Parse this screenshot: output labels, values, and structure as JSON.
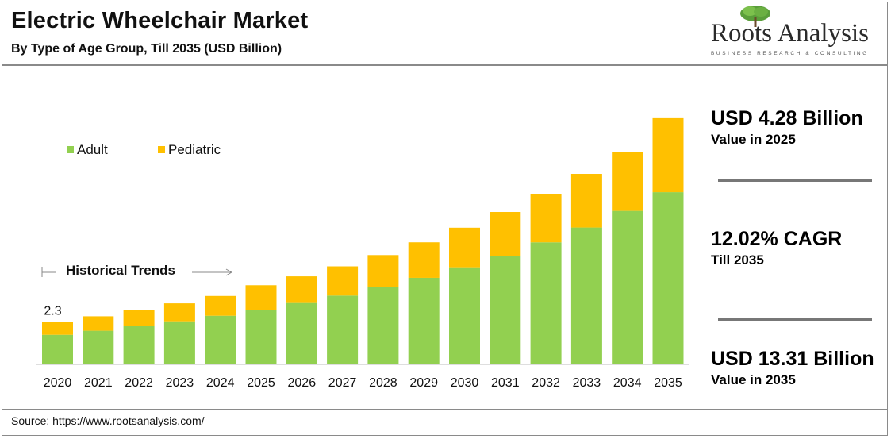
{
  "header": {
    "title": "Electric Wheelchair Market",
    "subtitle": "By Type of Age Group, Till 2035 (USD Billion)"
  },
  "logo": {
    "name": "Roots Analysis",
    "tagline": "BUSINESS RESEARCH & CONSULTING"
  },
  "kpis": [
    {
      "value": "USD 4.28 Billion",
      "label": "Value in 2025"
    },
    {
      "value": "12.02% CAGR",
      "label": "Till 2035"
    },
    {
      "value": "USD 13.31 Billion",
      "label": "Value in 2035"
    }
  ],
  "source": "Source: https://www.rootsanalysis.com/",
  "colors": {
    "adult": "#92d050",
    "pediatric": "#ffc000",
    "frame": "#8a8a8a"
  },
  "chart_data": {
    "type": "bar",
    "stacked": true,
    "categories": [
      "2020",
      "2021",
      "2022",
      "2023",
      "2024",
      "2025",
      "2026",
      "2027",
      "2028",
      "2029",
      "2030",
      "2031",
      "2032",
      "2033",
      "2034",
      "2035"
    ],
    "series": [
      {
        "name": "Adult",
        "color": "#92d050",
        "values": [
          1.6,
          1.82,
          2.06,
          2.33,
          2.63,
          2.96,
          3.32,
          3.72,
          4.17,
          4.68,
          5.25,
          5.88,
          6.6,
          7.4,
          8.3,
          9.31
        ]
      },
      {
        "name": "Pediatric",
        "color": "#ffc000",
        "values": [
          0.7,
          0.78,
          0.87,
          0.97,
          1.07,
          1.32,
          1.44,
          1.58,
          1.74,
          1.92,
          2.14,
          2.36,
          2.62,
          2.9,
          3.2,
          4.0
        ]
      }
    ],
    "data_labels": [
      {
        "category": "2020",
        "text": "2.3"
      }
    ],
    "annotation": "Historical Trends",
    "legend_position": "top-left",
    "ylim": [
      0,
      14
    ],
    "grid": false
  }
}
